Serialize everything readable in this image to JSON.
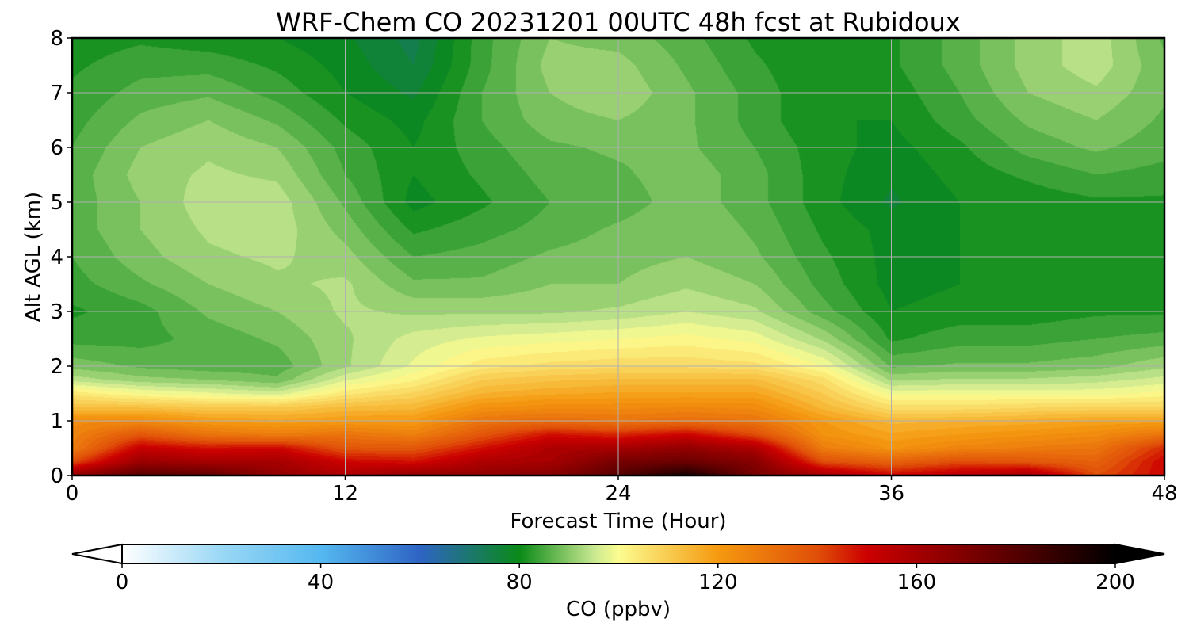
{
  "chart_data": {
    "type": "heatmap",
    "title": "WRF-Chem CO  20231201 00UTC 48h fcst at Rubidoux",
    "xlabel": "Forecast Time (Hour)",
    "ylabel": "Alt AGL (km)",
    "xlim": [
      0,
      48
    ],
    "ylim": [
      0,
      8
    ],
    "xticks": [
      0,
      12,
      24,
      36,
      48
    ],
    "yticks": [
      0,
      1,
      2,
      3,
      4,
      5,
      6,
      7,
      8
    ],
    "grid": true,
    "colorbar": {
      "label": "CO  (ppbv)",
      "range": [
        0,
        200
      ],
      "ticks": [
        0,
        40,
        80,
        120,
        160,
        200
      ],
      "extend": "both",
      "placement": "bottom",
      "stops": [
        {
          "value": 0,
          "color": "#ffffff"
        },
        {
          "value": 20,
          "color": "#9ad8f5"
        },
        {
          "value": 40,
          "color": "#55b8f0"
        },
        {
          "value": 60,
          "color": "#2e64c4"
        },
        {
          "value": 80,
          "color": "#0a8a18"
        },
        {
          "value": 95,
          "color": "#c8e890"
        },
        {
          "value": 100,
          "color": "#fcfc90"
        },
        {
          "value": 120,
          "color": "#f59a10"
        },
        {
          "value": 140,
          "color": "#e04f08"
        },
        {
          "value": 150,
          "color": "#cc0000"
        },
        {
          "value": 175,
          "color": "#6a0000"
        },
        {
          "value": 200,
          "color": "#000000"
        }
      ]
    },
    "x": [
      0,
      3,
      6,
      9,
      12,
      15,
      18,
      21,
      24,
      27,
      30,
      33,
      36,
      39,
      42,
      45,
      48
    ],
    "y": [
      0.0,
      0.25,
      0.5,
      0.75,
      1.0,
      1.25,
      1.5,
      1.75,
      2.0,
      2.5,
      3.0,
      3.5,
      4.0,
      4.5,
      5.0,
      5.5,
      6.0,
      6.5,
      7.0,
      7.5,
      8.0
    ],
    "z": [
      [
        165,
        180,
        178,
        165,
        158,
        165,
        165,
        168,
        180,
        195,
        172,
        160,
        150,
        155,
        160,
        140,
        150
      ],
      [
        140,
        163,
        160,
        160,
        150,
        148,
        158,
        160,
        172,
        175,
        168,
        140,
        135,
        140,
        138,
        135,
        150
      ],
      [
        128,
        152,
        148,
        150,
        138,
        138,
        148,
        158,
        160,
        165,
        158,
        128,
        122,
        126,
        128,
        130,
        145
      ],
      [
        126,
        138,
        130,
        128,
        130,
        127,
        138,
        148,
        145,
        150,
        140,
        122,
        118,
        120,
        122,
        124,
        130
      ],
      [
        124,
        124,
        120,
        118,
        120,
        120,
        130,
        132,
        130,
        132,
        130,
        120,
        114,
        115,
        116,
        118,
        118
      ],
      [
        112,
        112,
        110,
        110,
        113,
        114,
        122,
        124,
        124,
        125,
        124,
        114,
        106,
        106,
        107,
        108,
        108
      ],
      [
        104,
        100,
        98,
        96,
        104,
        108,
        115,
        117,
        118,
        118,
        118,
        110,
        99,
        99,
        99,
        99,
        101
      ],
      [
        94,
        91,
        90,
        88,
        97,
        102,
        110,
        112,
        113,
        113,
        113,
        106,
        92,
        93,
        93,
        94,
        96
      ],
      [
        89,
        87,
        86,
        86,
        92,
        98,
        104,
        106,
        107,
        107,
        106,
        100,
        87,
        88,
        88,
        89,
        92
      ],
      [
        84,
        84,
        86,
        88,
        92,
        96,
        98,
        99,
        100,
        101,
        99,
        92,
        82,
        84,
        84,
        85,
        86
      ],
      [
        82,
        84,
        88,
        90,
        93,
        92,
        92,
        92,
        93,
        95,
        93,
        86,
        80,
        81,
        81,
        82,
        82
      ],
      [
        84,
        87,
        90,
        92,
        93,
        88,
        88,
        90,
        90,
        92,
        90,
        84,
        79,
        80,
        80,
        80,
        80
      ],
      [
        85,
        89,
        92,
        93,
        91,
        85,
        86,
        88,
        89,
        90,
        88,
        83,
        79,
        80,
        80,
        80,
        80
      ],
      [
        86,
        90,
        93,
        94,
        89,
        82,
        84,
        86,
        88,
        90,
        87,
        82,
        79,
        80,
        80,
        81,
        81
      ],
      [
        86,
        90,
        94,
        94,
        87,
        79,
        82,
        85,
        86,
        89,
        86,
        81,
        77,
        80,
        81,
        82,
        82
      ],
      [
        86,
        91,
        93,
        92,
        85,
        80,
        83,
        86,
        87,
        89,
        86,
        81,
        78,
        81,
        83,
        85,
        84
      ],
      [
        85,
        90,
        92,
        90,
        84,
        80,
        84,
        87,
        88,
        88,
        85,
        81,
        79,
        82,
        86,
        88,
        86
      ],
      [
        84,
        88,
        90,
        87,
        82,
        79,
        85,
        89,
        90,
        88,
        84,
        80,
        80,
        84,
        88,
        90,
        87
      ],
      [
        83,
        86,
        87,
        84,
        80,
        77,
        85,
        90,
        92,
        88,
        84,
        80,
        81,
        85,
        90,
        92,
        88
      ],
      [
        82,
        84,
        84,
        82,
        79,
        75,
        84,
        91,
        91,
        87,
        83,
        80,
        82,
        86,
        91,
        94,
        88
      ],
      [
        81,
        82,
        81,
        80,
        78,
        74,
        84,
        90,
        89,
        86,
        82,
        80,
        82,
        86,
        91,
        94,
        87
      ]
    ]
  }
}
